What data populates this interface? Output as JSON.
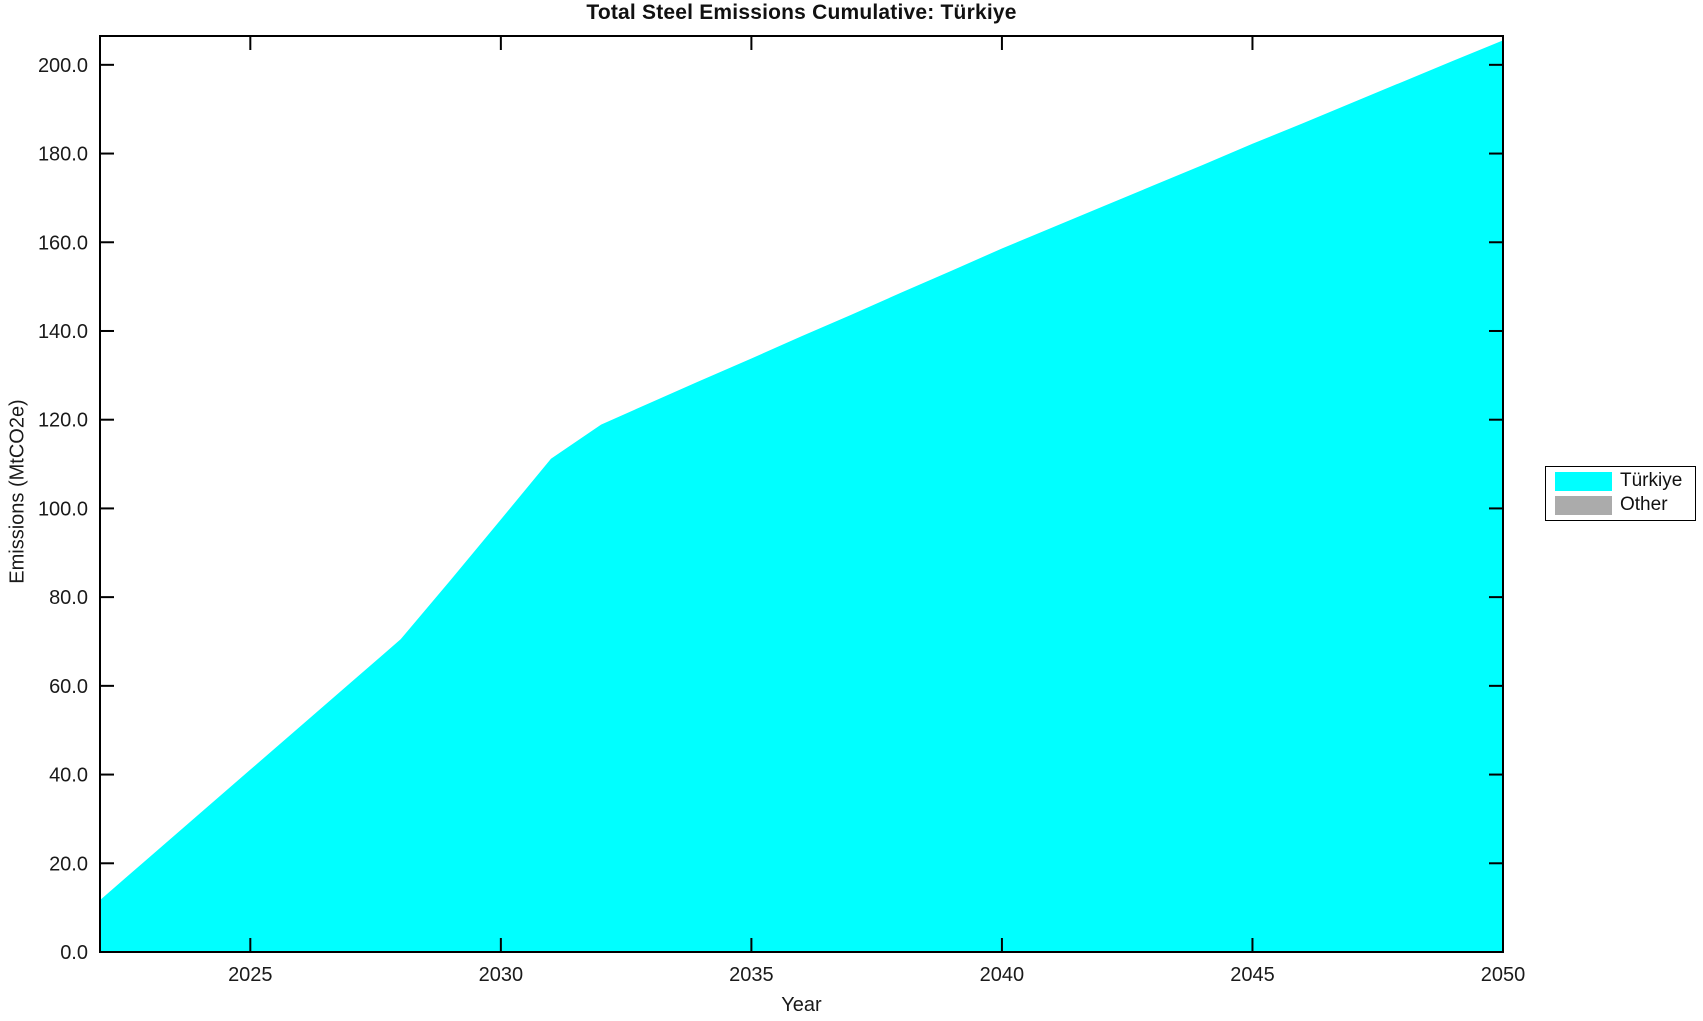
{
  "figure": {
    "title": "Total Steel Emissions Cumulative: Türkiye",
    "xlabel": "Year",
    "ylabel": "Emissions (MtCO2e)"
  },
  "legend": {
    "entries": [
      {
        "label": "Türkiye",
        "color": "#00FFFF"
      },
      {
        "label": "Other",
        "color": "#ABABAB"
      }
    ]
  },
  "chart_data": {
    "type": "area",
    "title": "Total Steel Emissions Cumulative: Türkiye",
    "xlabel": "Year",
    "ylabel": "Emissions (MtCO2e)",
    "grid": false,
    "legend_position": "right-outside",
    "background": "#FFFFFF",
    "axis_color": "#000000",
    "text_color": "#1A1A1A",
    "xlim": [
      2022,
      2050
    ],
    "ylim": [
      0,
      206.5
    ],
    "x_ticks": [
      2025,
      2030,
      2035,
      2040,
      2045,
      2050
    ],
    "x_tick_labels": [
      "2025",
      "2030",
      "2035",
      "2040",
      "2045",
      "2050"
    ],
    "y_ticks": [
      0,
      20,
      40,
      60,
      80,
      100,
      120,
      140,
      160,
      180,
      200
    ],
    "y_tick_labels": [
      "0.0",
      "20.0",
      "40.0",
      "60.0",
      "80.0",
      "100.0",
      "120.0",
      "140.0",
      "160.0",
      "180.0",
      "200.0"
    ],
    "x": [
      2022,
      2023,
      2024,
      2025,
      2026,
      2027,
      2028,
      2029,
      2030,
      2031,
      2032,
      2033,
      2034,
      2035,
      2036,
      2037,
      2038,
      2039,
      2040,
      2041,
      2042,
      2043,
      2044,
      2045,
      2046,
      2047,
      2048,
      2049,
      2050
    ],
    "series": [
      {
        "name": "Türkiye",
        "color": "#00FFFF",
        "values": [
          11.7,
          21.5,
          31.3,
          41.1,
          50.9,
          60.7,
          70.5,
          83.9,
          97.5,
          111.2,
          118.9,
          123.9,
          128.9,
          133.8,
          138.8,
          143.7,
          148.7,
          153.6,
          158.6,
          163.3,
          168.0,
          172.7,
          177.4,
          182.2,
          186.8,
          191.5,
          196.2,
          200.9,
          205.5
        ]
      }
    ]
  }
}
